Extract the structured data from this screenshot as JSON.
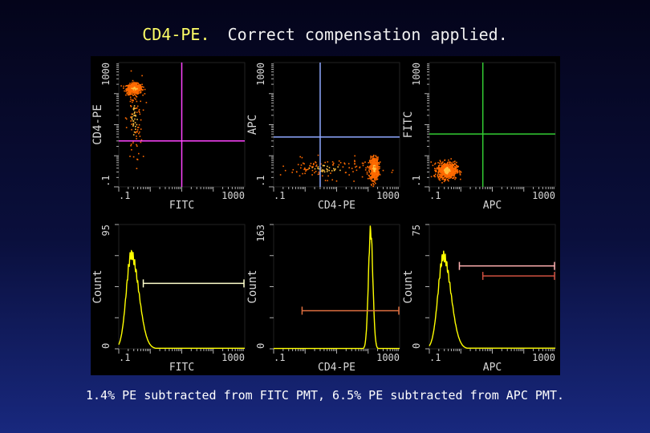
{
  "slide": {
    "title_prefix": "CD4-PE.",
    "title_rest": "Correct compensation applied.",
    "footer": "1.4% PE subtracted from FITC PMT, 6.5% PE subtracted from APC PMT.",
    "colors": {
      "title": "#ffff66",
      "panel_bg": "#000000",
      "frame": "#222222",
      "axis_text": "#d8d8d8",
      "dot": "#ff6a00",
      "dot_hot": "#ffc040",
      "histogram": "#ffff00",
      "quad_magenta": "#ff44ff",
      "quad_blue": "#8fa8ff",
      "quad_green": "#33cc33",
      "gate_white": "#ffffcc",
      "gate_orange": "#e07040",
      "gate_pink": "#ffb0b0",
      "gate_red": "#d05040"
    }
  },
  "chart_data": [
    {
      "type": "scatter",
      "scale": "log",
      "xlabel": "FITC",
      "ylabel": "CD4-PE",
      "xlim": [
        0.1,
        1000
      ],
      "ylim": [
        0.1,
        1000
      ],
      "x_ticks": [
        ".1",
        "1000"
      ],
      "y_ticks": [
        ".1",
        "1000"
      ],
      "quadrant": {
        "x": 10,
        "y": 3,
        "color": "quad_magenta"
      },
      "populations": [
        {
          "x": 0.3,
          "y": 150,
          "spread_x": 0.12,
          "spread_y": 0.08,
          "count": 520
        },
        {
          "x": 0.3,
          "y": 15,
          "spread_x": 0.12,
          "spread_y": 0.7,
          "count": 110
        }
      ]
    },
    {
      "type": "scatter",
      "scale": "log",
      "xlabel": "CD4-PE",
      "ylabel": "APC",
      "xlim": [
        0.1,
        1000
      ],
      "ylim": [
        0.1,
        1000
      ],
      "x_ticks": [
        ".1",
        "1000"
      ],
      "y_ticks": [
        ".1",
        "1000"
      ],
      "quadrant": {
        "x": 3,
        "y": 4,
        "color": "quad_blue"
      },
      "populations": [
        {
          "x": 150,
          "y": 0.4,
          "spread_x": 0.07,
          "spread_y": 0.18,
          "count": 520
        },
        {
          "x": 5,
          "y": 0.4,
          "spread_x": 0.75,
          "spread_y": 0.16,
          "count": 130
        }
      ]
    },
    {
      "type": "scatter",
      "scale": "log",
      "xlabel": "APC",
      "ylabel": "FITC",
      "xlim": [
        0.1,
        1000
      ],
      "ylim": [
        0.1,
        1000
      ],
      "x_ticks": [
        ".1",
        "1000"
      ],
      "y_ticks": [
        ".1",
        "1000"
      ],
      "quadrant": {
        "x": 5,
        "y": 5,
        "color": "quad_green"
      },
      "populations": [
        {
          "x": 0.35,
          "y": 0.35,
          "spread_x": 0.15,
          "spread_y": 0.13,
          "count": 700
        }
      ]
    },
    {
      "type": "line",
      "scale": "logx",
      "xlabel": "FITC",
      "ylabel": "Count",
      "xlim": [
        0.1,
        1000
      ],
      "ylim": [
        0,
        95
      ],
      "x_ticks": [
        ".1",
        "1000"
      ],
      "y_ticks": [
        "0",
        "95"
      ],
      "peak": {
        "x": 0.25,
        "height": 72,
        "width": 0.16,
        "skew": 1.5
      },
      "markers": [
        {
          "x1": 0.6,
          "x2": 1000,
          "y": 50,
          "color": "gate_white"
        }
      ]
    },
    {
      "type": "line",
      "scale": "logx",
      "xlabel": "CD4-PE",
      "ylabel": "Count",
      "xlim": [
        0.1,
        1000
      ],
      "ylim": [
        0,
        163
      ],
      "x_ticks": [
        ".1",
        "1000"
      ],
      "y_ticks": [
        "0",
        "163"
      ],
      "peak": {
        "x": 120,
        "height": 155,
        "width": 0.07,
        "skew": 1.0
      },
      "markers": [
        {
          "x1": 0.8,
          "x2": 1000,
          "y": 50,
          "color": "gate_orange"
        }
      ]
    },
    {
      "type": "line",
      "scale": "logx",
      "xlabel": "APC",
      "ylabel": "Count",
      "xlim": [
        0.1,
        1000
      ],
      "ylim": [
        0,
        75
      ],
      "x_ticks": [
        ".1",
        "1000"
      ],
      "y_ticks": [
        "0",
        "75"
      ],
      "peak": {
        "x": 0.28,
        "height": 56,
        "width": 0.17,
        "skew": 1.4
      },
      "markers": [
        {
          "x1": 0.9,
          "x2": 1000,
          "y": 50,
          "color": "gate_pink"
        },
        {
          "x1": 5,
          "x2": 1000,
          "y": 44,
          "color": "gate_red"
        }
      ]
    }
  ]
}
